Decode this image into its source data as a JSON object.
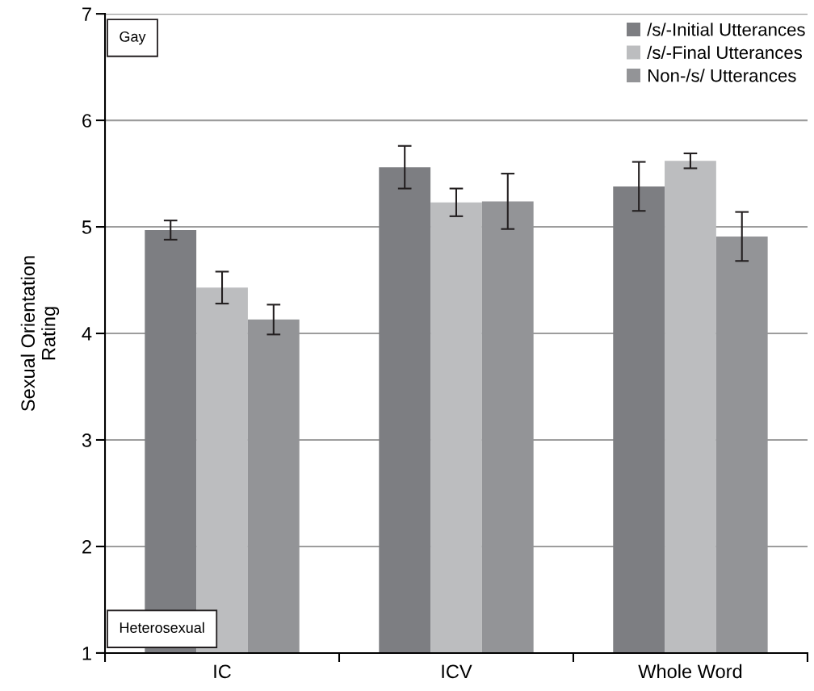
{
  "chart_data": {
    "type": "bar",
    "ylabel": "Sexual Orientation\nRating",
    "categories": [
      "IC",
      "ICV",
      "Whole Word"
    ],
    "series": [
      {
        "name": "/s/-Initial Utterances",
        "color": "#7d7e82",
        "values": [
          4.97,
          5.56,
          5.38
        ],
        "errors": [
          [
            4.88,
            5.06
          ],
          [
            5.36,
            5.76
          ],
          [
            5.15,
            5.61
          ]
        ]
      },
      {
        "name": "/s/-Final Utterances",
        "color": "#bcbdbf",
        "values": [
          4.43,
          5.23,
          5.62
        ],
        "errors": [
          [
            4.28,
            4.58
          ],
          [
            5.1,
            5.36
          ],
          [
            5.55,
            5.69
          ]
        ]
      },
      {
        "name": "Non-/s/ Utterances",
        "color": "#939497",
        "values": [
          4.13,
          5.24,
          4.91
        ],
        "errors": [
          [
            3.99,
            4.27
          ],
          [
            4.98,
            5.5
          ],
          [
            4.68,
            5.14
          ]
        ]
      }
    ],
    "ylim": [
      1,
      7
    ],
    "yticks": [
      1,
      2,
      3,
      4,
      5,
      6,
      7
    ],
    "grid": "y",
    "legend": "top right",
    "annotations": [
      "Gay",
      "Heterosexual"
    ]
  }
}
